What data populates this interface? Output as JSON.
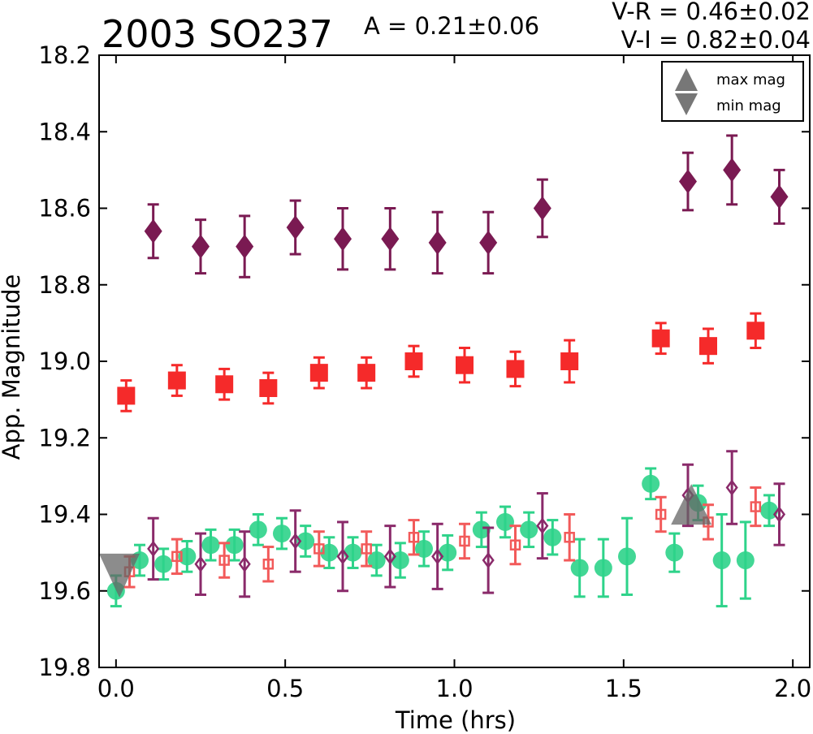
{
  "header": {
    "title": "2003 SO237",
    "amplitude": "A  = 0.21±0.06",
    "vr": "V-R = 0.46±0.02",
    "vi": "V-I  = 0.82±0.04"
  },
  "chart_data": {
    "type": "scatter",
    "title": "2003 SO237",
    "xlabel": "Time (hrs)",
    "ylabel": "App. Magnitude",
    "xlim": [
      -0.05,
      2.05
    ],
    "ylim": [
      19.8,
      18.2
    ],
    "y_inverted": true,
    "grid": false,
    "legend_position": "top-right",
    "x_ticks": [
      {
        "value": 0.0,
        "label": "0.0"
      },
      {
        "value": 0.5,
        "label": "0.5"
      },
      {
        "value": 1.0,
        "label": "1.0"
      },
      {
        "value": 1.5,
        "label": "1.5"
      },
      {
        "value": 2.0,
        "label": "2.0"
      }
    ],
    "y_ticks": [
      {
        "value": 18.2,
        "label": "18.2"
      },
      {
        "value": 18.4,
        "label": "18.4"
      },
      {
        "value": 18.6,
        "label": "18.6"
      },
      {
        "value": 18.8,
        "label": "18.8"
      },
      {
        "value": 19.0,
        "label": "19.0"
      },
      {
        "value": 19.2,
        "label": "19.2"
      },
      {
        "value": 19.4,
        "label": "19.4"
      },
      {
        "value": 19.6,
        "label": "19.6"
      },
      {
        "value": 19.8,
        "label": "19.8"
      }
    ],
    "series": [
      {
        "marker": "diamond",
        "color": "#7a1a52",
        "fill": true,
        "points": [
          {
            "x": 0.11,
            "y": 18.66,
            "err": 0.07
          },
          {
            "x": 0.25,
            "y": 18.7,
            "err": 0.07
          },
          {
            "x": 0.38,
            "y": 18.7,
            "err": 0.08
          },
          {
            "x": 0.53,
            "y": 18.65,
            "err": 0.07
          },
          {
            "x": 0.67,
            "y": 18.68,
            "err": 0.08
          },
          {
            "x": 0.81,
            "y": 18.68,
            "err": 0.08
          },
          {
            "x": 0.95,
            "y": 18.69,
            "err": 0.08
          },
          {
            "x": 1.1,
            "y": 18.69,
            "err": 0.08
          },
          {
            "x": 1.26,
            "y": 18.6,
            "err": 0.075
          },
          {
            "x": 1.69,
            "y": 18.53,
            "err": 0.075
          },
          {
            "x": 1.82,
            "y": 18.5,
            "err": 0.09
          },
          {
            "x": 1.96,
            "y": 18.57,
            "err": 0.07
          }
        ]
      },
      {
        "marker": "square",
        "color": "#f52a2a",
        "fill": true,
        "points": [
          {
            "x": 0.03,
            "y": 19.09,
            "err": 0.04
          },
          {
            "x": 0.18,
            "y": 19.05,
            "err": 0.04
          },
          {
            "x": 0.32,
            "y": 19.06,
            "err": 0.04
          },
          {
            "x": 0.45,
            "y": 19.07,
            "err": 0.04
          },
          {
            "x": 0.6,
            "y": 19.03,
            "err": 0.04
          },
          {
            "x": 0.74,
            "y": 19.03,
            "err": 0.04
          },
          {
            "x": 0.88,
            "y": 19.0,
            "err": 0.04
          },
          {
            "x": 1.03,
            "y": 19.01,
            "err": 0.045
          },
          {
            "x": 1.18,
            "y": 19.02,
            "err": 0.045
          },
          {
            "x": 1.34,
            "y": 19.0,
            "err": 0.055
          },
          {
            "x": 1.61,
            "y": 18.94,
            "err": 0.04
          },
          {
            "x": 1.75,
            "y": 18.96,
            "err": 0.045
          },
          {
            "x": 1.89,
            "y": 18.92,
            "err": 0.045
          }
        ]
      },
      {
        "marker": "circle",
        "color": "#2ed38a",
        "fill": true,
        "points": [
          {
            "x": 0.0,
            "y": 19.6,
            "err": 0.04
          },
          {
            "x": 0.07,
            "y": 19.52,
            "err": 0.04
          },
          {
            "x": 0.14,
            "y": 19.53,
            "err": 0.04
          },
          {
            "x": 0.21,
            "y": 19.51,
            "err": 0.04
          },
          {
            "x": 0.28,
            "y": 19.48,
            "err": 0.04
          },
          {
            "x": 0.35,
            "y": 19.48,
            "err": 0.04
          },
          {
            "x": 0.42,
            "y": 19.44,
            "err": 0.04
          },
          {
            "x": 0.49,
            "y": 19.45,
            "err": 0.04
          },
          {
            "x": 0.56,
            "y": 19.47,
            "err": 0.04
          },
          {
            "x": 0.63,
            "y": 19.5,
            "err": 0.04
          },
          {
            "x": 0.7,
            "y": 19.5,
            "err": 0.04
          },
          {
            "x": 0.77,
            "y": 19.52,
            "err": 0.04
          },
          {
            "x": 0.84,
            "y": 19.52,
            "err": 0.045
          },
          {
            "x": 0.91,
            "y": 19.49,
            "err": 0.045
          },
          {
            "x": 0.98,
            "y": 19.5,
            "err": 0.045
          },
          {
            "x": 1.08,
            "y": 19.44,
            "err": 0.045
          },
          {
            "x": 1.15,
            "y": 19.42,
            "err": 0.04
          },
          {
            "x": 1.22,
            "y": 19.44,
            "err": 0.045
          },
          {
            "x": 1.29,
            "y": 19.46,
            "err": 0.045
          },
          {
            "x": 1.37,
            "y": 19.54,
            "err": 0.075
          },
          {
            "x": 1.44,
            "y": 19.54,
            "err": 0.075
          },
          {
            "x": 1.51,
            "y": 19.51,
            "err": 0.1
          },
          {
            "x": 1.58,
            "y": 19.32,
            "err": 0.04
          },
          {
            "x": 1.65,
            "y": 19.5,
            "err": 0.05
          },
          {
            "x": 1.72,
            "y": 19.37,
            "err": 0.045
          },
          {
            "x": 1.79,
            "y": 19.52,
            "err": 0.12
          },
          {
            "x": 1.86,
            "y": 19.52,
            "err": 0.1
          },
          {
            "x": 1.93,
            "y": 19.39,
            "err": 0.04
          }
        ]
      },
      {
        "marker": "square",
        "color": "#f25a5a",
        "fill": false,
        "points": [
          {
            "x": 0.04,
            "y": 19.55,
            "err": 0.04
          },
          {
            "x": 0.18,
            "y": 19.51,
            "err": 0.045
          },
          {
            "x": 0.32,
            "y": 19.52,
            "err": 0.045
          },
          {
            "x": 0.45,
            "y": 19.53,
            "err": 0.045
          },
          {
            "x": 0.6,
            "y": 19.49,
            "err": 0.045
          },
          {
            "x": 0.74,
            "y": 19.49,
            "err": 0.045
          },
          {
            "x": 0.88,
            "y": 19.46,
            "err": 0.045
          },
          {
            "x": 1.03,
            "y": 19.47,
            "err": 0.045
          },
          {
            "x": 1.18,
            "y": 19.48,
            "err": 0.05
          },
          {
            "x": 1.34,
            "y": 19.46,
            "err": 0.06
          },
          {
            "x": 1.61,
            "y": 19.4,
            "err": 0.045
          },
          {
            "x": 1.75,
            "y": 19.42,
            "err": 0.045
          },
          {
            "x": 1.89,
            "y": 19.38,
            "err": 0.05
          }
        ]
      },
      {
        "marker": "diamond",
        "color": "#8a2a6a",
        "fill": false,
        "points": [
          {
            "x": 0.11,
            "y": 19.49,
            "err": 0.08
          },
          {
            "x": 0.25,
            "y": 19.53,
            "err": 0.08
          },
          {
            "x": 0.38,
            "y": 19.53,
            "err": 0.085
          },
          {
            "x": 0.53,
            "y": 19.47,
            "err": 0.08
          },
          {
            "x": 0.67,
            "y": 19.51,
            "err": 0.09
          },
          {
            "x": 0.81,
            "y": 19.51,
            "err": 0.08
          },
          {
            "x": 0.95,
            "y": 19.51,
            "err": 0.085
          },
          {
            "x": 1.1,
            "y": 19.52,
            "err": 0.085
          },
          {
            "x": 1.26,
            "y": 19.43,
            "err": 0.085
          },
          {
            "x": 1.69,
            "y": 19.35,
            "err": 0.08
          },
          {
            "x": 1.82,
            "y": 19.33,
            "err": 0.095
          },
          {
            "x": 1.96,
            "y": 19.4,
            "err": 0.08
          }
        ]
      }
    ],
    "markers": [
      {
        "label": "max mag",
        "marker": "triangle-up",
        "x": 1.7,
        "y": 19.38,
        "color": "#666666"
      },
      {
        "label": "min mag",
        "marker": "triangle-down",
        "x": 0.01,
        "y": 19.56,
        "color": "#666666"
      }
    ],
    "legend": [
      {
        "label": "max mag",
        "marker": "triangle-up"
      },
      {
        "label": "min mag",
        "marker": "triangle-down"
      }
    ]
  }
}
